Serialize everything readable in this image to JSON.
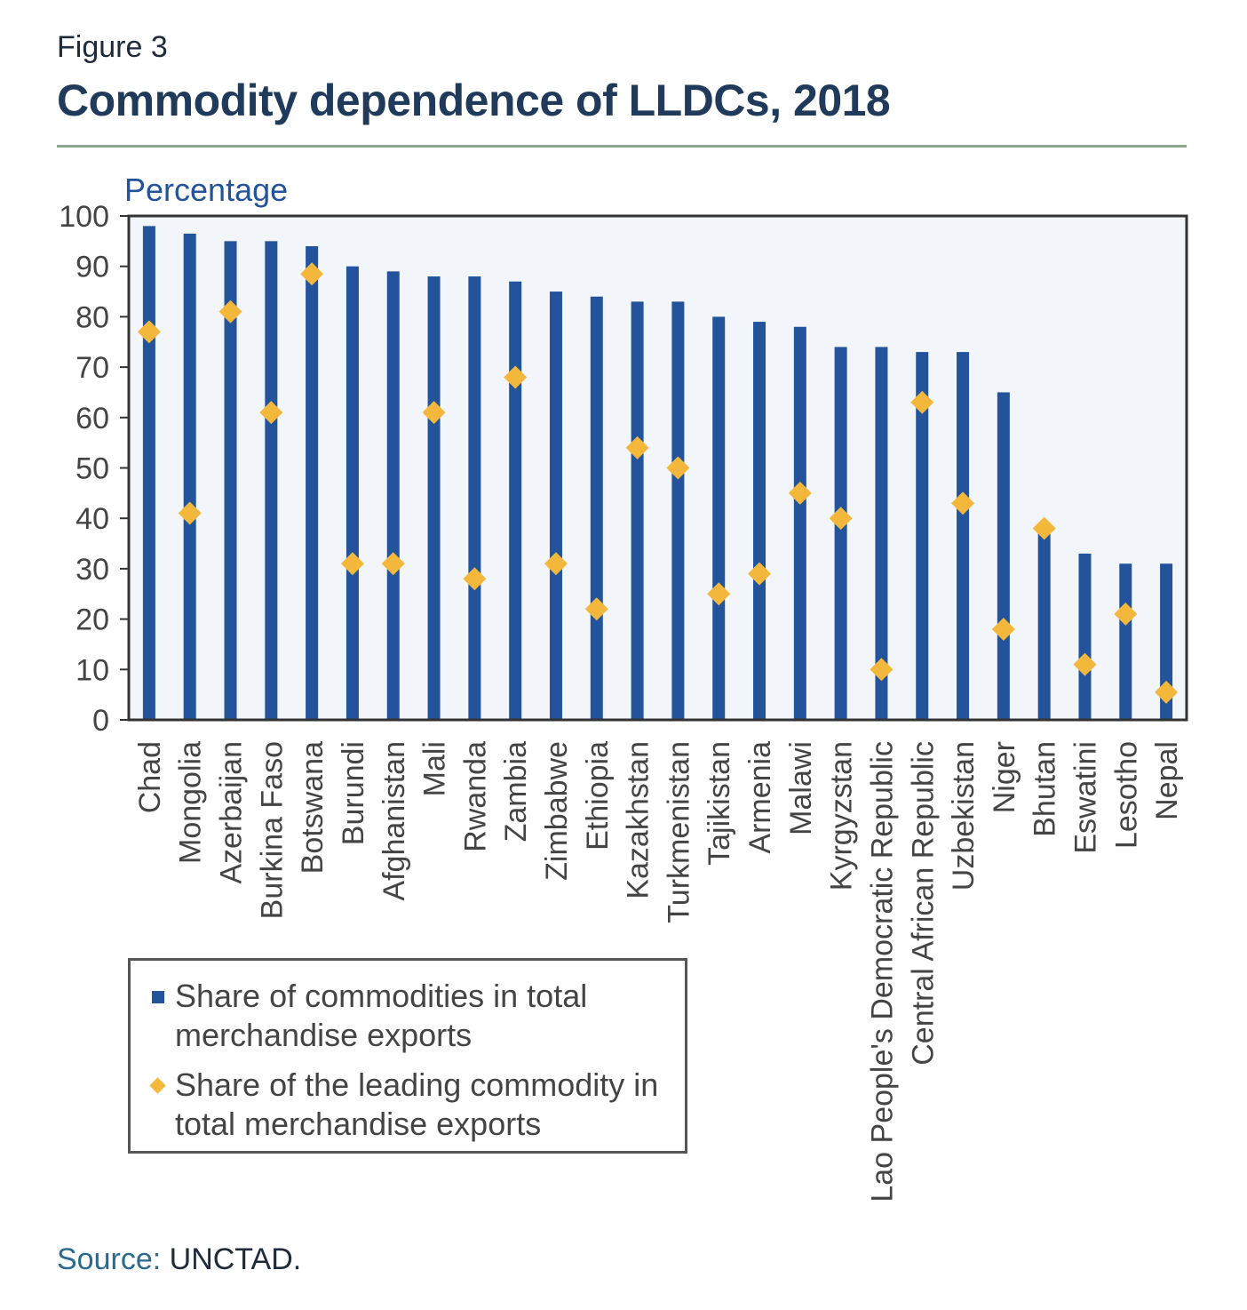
{
  "figure_label": "Figure 3",
  "title": "Commodity dependence of LLDCs, 2018",
  "source_label": "Source:",
  "source_value": "UNCTAD.",
  "colors": {
    "bar": "#23539b",
    "marker": "#f3b73c",
    "plot_bg": "#f2f6fa",
    "title": "#1f3a5a",
    "rule": "#8aa88a"
  },
  "legend": {
    "items": [
      {
        "label": "Share of commodities in total merchandise exports",
        "swatch": "square"
      },
      {
        "label": "Share of the leading commodity in total merchandise exports",
        "swatch": "diamond"
      }
    ]
  },
  "chart_data": {
    "type": "bar",
    "ylabel": "Percentage",
    "ylim": [
      0,
      100
    ],
    "yticks": [
      0,
      10,
      20,
      30,
      40,
      50,
      60,
      70,
      80,
      90,
      100
    ],
    "grid": false,
    "legend_position": "bottom-left",
    "categories": [
      "Chad",
      "Mongolia",
      "Azerbaijan",
      "Burkina Faso",
      "Botswana",
      "Burundi",
      "Afghanistan",
      "Mali",
      "Rwanda",
      "Zambia",
      "Zimbabwe",
      "Ethiopia",
      "Kazakhstan",
      "Turkmenistan",
      "Tajikistan",
      "Armenia",
      "Malawi",
      "Kyrgyzstan",
      "Lao People's Democratic Republic",
      "Central African Republic",
      "Uzbekistan",
      "Niger",
      "Bhutan",
      "Eswatini",
      "Lesotho",
      "Nepal"
    ],
    "series": [
      {
        "name": "Share of commodities in total merchandise exports",
        "kind": "bar",
        "values": [
          98,
          96.5,
          95,
          95,
          94,
          90,
          89,
          88,
          88,
          87,
          85,
          84,
          83,
          83,
          80,
          79,
          78,
          74,
          74,
          73,
          73,
          65,
          38,
          33,
          31,
          31
        ]
      },
      {
        "name": "Share of the leading commodity in total merchandise exports",
        "kind": "diamond",
        "values": [
          77,
          41,
          81,
          61,
          88.5,
          31,
          31,
          61,
          28,
          68,
          31,
          22,
          54,
          50,
          25,
          29,
          45,
          40,
          10,
          63,
          43,
          18,
          38,
          11,
          21,
          5.5
        ]
      }
    ]
  }
}
